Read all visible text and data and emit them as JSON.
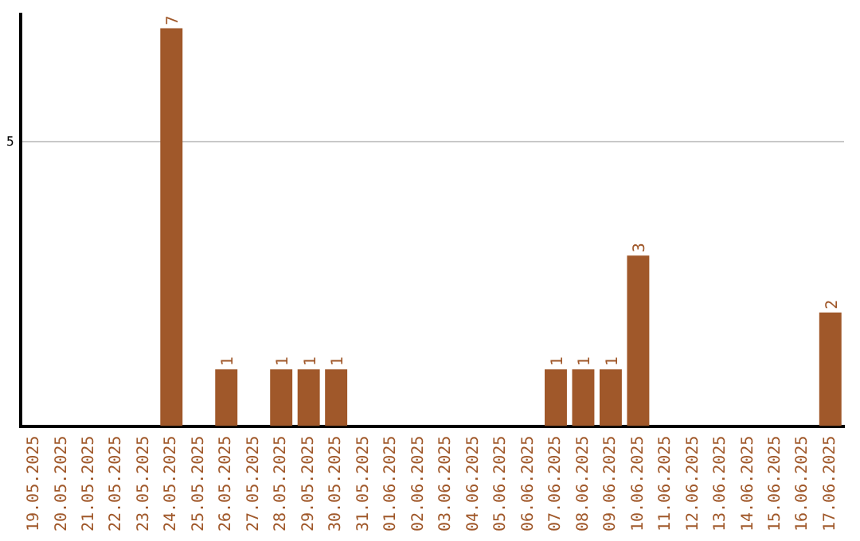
{
  "chart_data": {
    "type": "bar",
    "categories": [
      "19.05.2025",
      "20.05.2025",
      "21.05.2025",
      "22.05.2025",
      "23.05.2025",
      "24.05.2025",
      "25.05.2025",
      "26.05.2025",
      "27.05.2025",
      "28.05.2025",
      "29.05.2025",
      "30.05.2025",
      "31.05.2025",
      "01.06.2025",
      "02.06.2025",
      "03.06.2025",
      "04.06.2025",
      "05.06.2025",
      "06.06.2025",
      "07.06.2025",
      "08.06.2025",
      "09.06.2025",
      "10.06.2025",
      "11.06.2025",
      "12.06.2025",
      "13.06.2025",
      "14.06.2025",
      "15.06.2025",
      "16.06.2025",
      "17.06.2025"
    ],
    "values": [
      0,
      0,
      0,
      0,
      0,
      7,
      0,
      1,
      0,
      1,
      1,
      1,
      0,
      0,
      0,
      0,
      0,
      0,
      0,
      1,
      1,
      1,
      3,
      0,
      0,
      0,
      0,
      0,
      0,
      2
    ],
    "value_labels": [
      null,
      null,
      null,
      null,
      null,
      "7",
      null,
      "1",
      null,
      "1",
      "1",
      "1",
      null,
      null,
      null,
      null,
      null,
      null,
      null,
      "1",
      "1",
      "1",
      "3",
      null,
      null,
      null,
      null,
      null,
      null,
      "2"
    ],
    "color": "#a0582a",
    "ylim": [
      0,
      7.25
    ],
    "yticks": [
      5
    ],
    "grid": "y",
    "legend": false
  }
}
